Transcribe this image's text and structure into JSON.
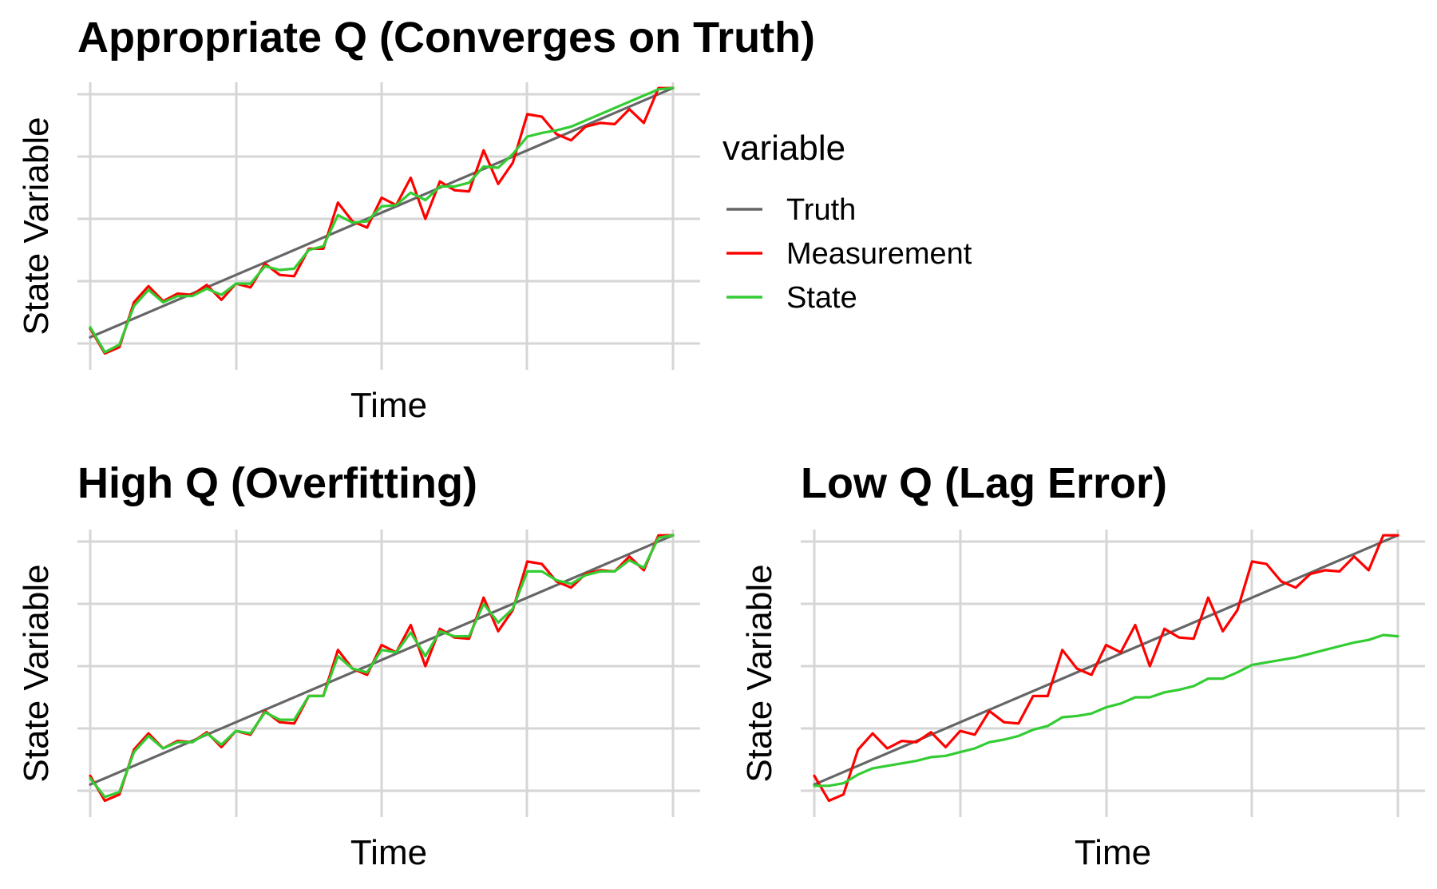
{
  "legend": {
    "title": "variable",
    "placement": "right",
    "items": [
      {
        "label": "Truth",
        "color": "#666666"
      },
      {
        "label": "Measurement",
        "color": "#ff0000"
      },
      {
        "label": "State",
        "color": "#33cc33"
      }
    ]
  },
  "chart_data": [
    {
      "type": "line",
      "title": "Appropriate Q (Converges on Truth)",
      "xlabel": "Time",
      "ylabel": "State Variable",
      "grid": true,
      "tick_labels_shown": false,
      "xlim": [
        -1,
        41
      ],
      "ylim": [
        -0.5,
        20.5
      ],
      "x": [
        0,
        1,
        2,
        3,
        4,
        5,
        6,
        7,
        8,
        9,
        10,
        11,
        12,
        13,
        14,
        15,
        16,
        17,
        18,
        19,
        20,
        21,
        22,
        23,
        24,
        25,
        26,
        27,
        28,
        29,
        30,
        31,
        32,
        33,
        34,
        35,
        36,
        37,
        38,
        39,
        40
      ],
      "series": [
        {
          "name": "Truth",
          "color": "#666666",
          "values": [
            0.5,
            1,
            1.5,
            2,
            2.5,
            3,
            3.5,
            4,
            4.5,
            5,
            5.5,
            6,
            6.5,
            7,
            7.5,
            8,
            8.5,
            9,
            9.5,
            10,
            10.5,
            11,
            11.5,
            12,
            12.5,
            13,
            13.5,
            14,
            14.5,
            15,
            15.5,
            16,
            16.5,
            17,
            17.5,
            18,
            18.5,
            19,
            19.5,
            20,
            20.5
          ]
        },
        {
          "name": "Measurement",
          "color": "#ff0000",
          "values": [
            1.2,
            -0.8,
            -0.3,
            3.3,
            4.6,
            3.4,
            4,
            3.9,
            4.7,
            3.5,
            4.8,
            4.5,
            6.4,
            5.5,
            5.4,
            7.6,
            7.6,
            11.3,
            9.8,
            9.3,
            11.7,
            11.1,
            13.3,
            10,
            13,
            12.3,
            12.2,
            15.5,
            12.8,
            14.5,
            18.4,
            18.2,
            16.8,
            16.3,
            17.4,
            17.7,
            17.6,
            18.8,
            17.7,
            20.5,
            20.5
          ]
        },
        {
          "name": "State",
          "color": "#33cc33",
          "values": [
            1.3,
            -0.7,
            -0.1,
            3,
            4.3,
            3.3,
            3.8,
            3.8,
            4.4,
            3.9,
            4.8,
            4.8,
            6.2,
            5.9,
            6,
            7.5,
            7.8,
            10.3,
            9.7,
            9.8,
            11,
            11.1,
            12.1,
            11.5,
            12.6,
            12.6,
            12.9,
            14.2,
            14.1,
            15.2,
            16.6,
            16.9,
            17.1,
            17.4,
            17.9,
            18.4,
            18.9,
            19.4,
            19.9,
            20.4,
            20.5
          ]
        }
      ]
    },
    {
      "type": "line",
      "title": "High Q (Overfitting)",
      "xlabel": "Time",
      "ylabel": "State Variable",
      "grid": true,
      "tick_labels_shown": false,
      "xlim": [
        -1,
        41
      ],
      "ylim": [
        -0.5,
        20.5
      ],
      "x": [
        0,
        1,
        2,
        3,
        4,
        5,
        6,
        7,
        8,
        9,
        10,
        11,
        12,
        13,
        14,
        15,
        16,
        17,
        18,
        19,
        20,
        21,
        22,
        23,
        24,
        25,
        26,
        27,
        28,
        29,
        30,
        31,
        32,
        33,
        34,
        35,
        36,
        37,
        38,
        39,
        40
      ],
      "series": [
        {
          "name": "Truth",
          "color": "#666666",
          "values": [
            0.5,
            1,
            1.5,
            2,
            2.5,
            3,
            3.5,
            4,
            4.5,
            5,
            5.5,
            6,
            6.5,
            7,
            7.5,
            8,
            8.5,
            9,
            9.5,
            10,
            10.5,
            11,
            11.5,
            12,
            12.5,
            13,
            13.5,
            14,
            14.5,
            15,
            15.5,
            16,
            16.5,
            17,
            17.5,
            18,
            18.5,
            19,
            19.5,
            20,
            20.5
          ]
        },
        {
          "name": "Measurement",
          "color": "#ff0000",
          "values": [
            1.2,
            -0.8,
            -0.3,
            3.3,
            4.6,
            3.4,
            4,
            3.9,
            4.7,
            3.5,
            4.8,
            4.5,
            6.4,
            5.5,
            5.4,
            7.6,
            7.6,
            11.3,
            9.8,
            9.3,
            11.7,
            11.1,
            13.3,
            10,
            13,
            12.3,
            12.2,
            15.5,
            12.8,
            14.5,
            18.4,
            18.2,
            16.8,
            16.3,
            17.4,
            17.7,
            17.6,
            18.8,
            17.7,
            20.5,
            20.5
          ]
        },
        {
          "name": "State",
          "color": "#33cc33",
          "values": [
            1,
            -0.5,
            -0.1,
            3.1,
            4.4,
            3.4,
            3.9,
            3.9,
            4.6,
            3.7,
            4.8,
            4.6,
            6.3,
            5.7,
            5.7,
            7.6,
            7.6,
            10.8,
            9.8,
            9.5,
            11.3,
            11.1,
            12.7,
            10.8,
            12.8,
            12.4,
            12.4,
            15,
            13.5,
            14.6,
            17.6,
            17.6,
            16.9,
            16.6,
            17.3,
            17.6,
            17.6,
            18.5,
            17.9,
            20.3,
            20.5
          ]
        }
      ]
    },
    {
      "type": "line",
      "title": "Low Q (Lag Error)",
      "xlabel": "Time",
      "ylabel": "State Variable",
      "grid": true,
      "tick_labels_shown": false,
      "xlim": [
        -1,
        41
      ],
      "ylim": [
        -0.5,
        20.5
      ],
      "x": [
        0,
        1,
        2,
        3,
        4,
        5,
        6,
        7,
        8,
        9,
        10,
        11,
        12,
        13,
        14,
        15,
        16,
        17,
        18,
        19,
        20,
        21,
        22,
        23,
        24,
        25,
        26,
        27,
        28,
        29,
        30,
        31,
        32,
        33,
        34,
        35,
        36,
        37,
        38,
        39,
        40
      ],
      "series": [
        {
          "name": "Truth",
          "color": "#666666",
          "values": [
            0.5,
            1,
            1.5,
            2,
            2.5,
            3,
            3.5,
            4,
            4.5,
            5,
            5.5,
            6,
            6.5,
            7,
            7.5,
            8,
            8.5,
            9,
            9.5,
            10,
            10.5,
            11,
            11.5,
            12,
            12.5,
            13,
            13.5,
            14,
            14.5,
            15,
            15.5,
            16,
            16.5,
            17,
            17.5,
            18,
            18.5,
            19,
            19.5,
            20,
            20.5
          ]
        },
        {
          "name": "Measurement",
          "color": "#ff0000",
          "values": [
            1.2,
            -0.8,
            -0.3,
            3.3,
            4.6,
            3.4,
            4,
            3.9,
            4.7,
            3.5,
            4.8,
            4.5,
            6.4,
            5.5,
            5.4,
            7.6,
            7.6,
            11.3,
            9.8,
            9.3,
            11.7,
            11.1,
            13.3,
            10,
            13,
            12.3,
            12.2,
            15.5,
            12.8,
            14.5,
            18.4,
            18.2,
            16.8,
            16.3,
            17.4,
            17.7,
            17.6,
            18.8,
            17.7,
            20.5,
            20.5
          ]
        },
        {
          "name": "State",
          "color": "#33cc33",
          "values": [
            0.4,
            0.4,
            0.6,
            1.3,
            1.8,
            2,
            2.2,
            2.4,
            2.7,
            2.8,
            3.1,
            3.4,
            3.9,
            4.1,
            4.4,
            4.9,
            5.2,
            5.9,
            6,
            6.2,
            6.7,
            7,
            7.5,
            7.5,
            7.9,
            8.1,
            8.4,
            9,
            9,
            9.5,
            10.1,
            10.3,
            10.5,
            10.7,
            11,
            11.3,
            11.6,
            11.9,
            12.1,
            12.5,
            12.4
          ]
        }
      ]
    }
  ]
}
